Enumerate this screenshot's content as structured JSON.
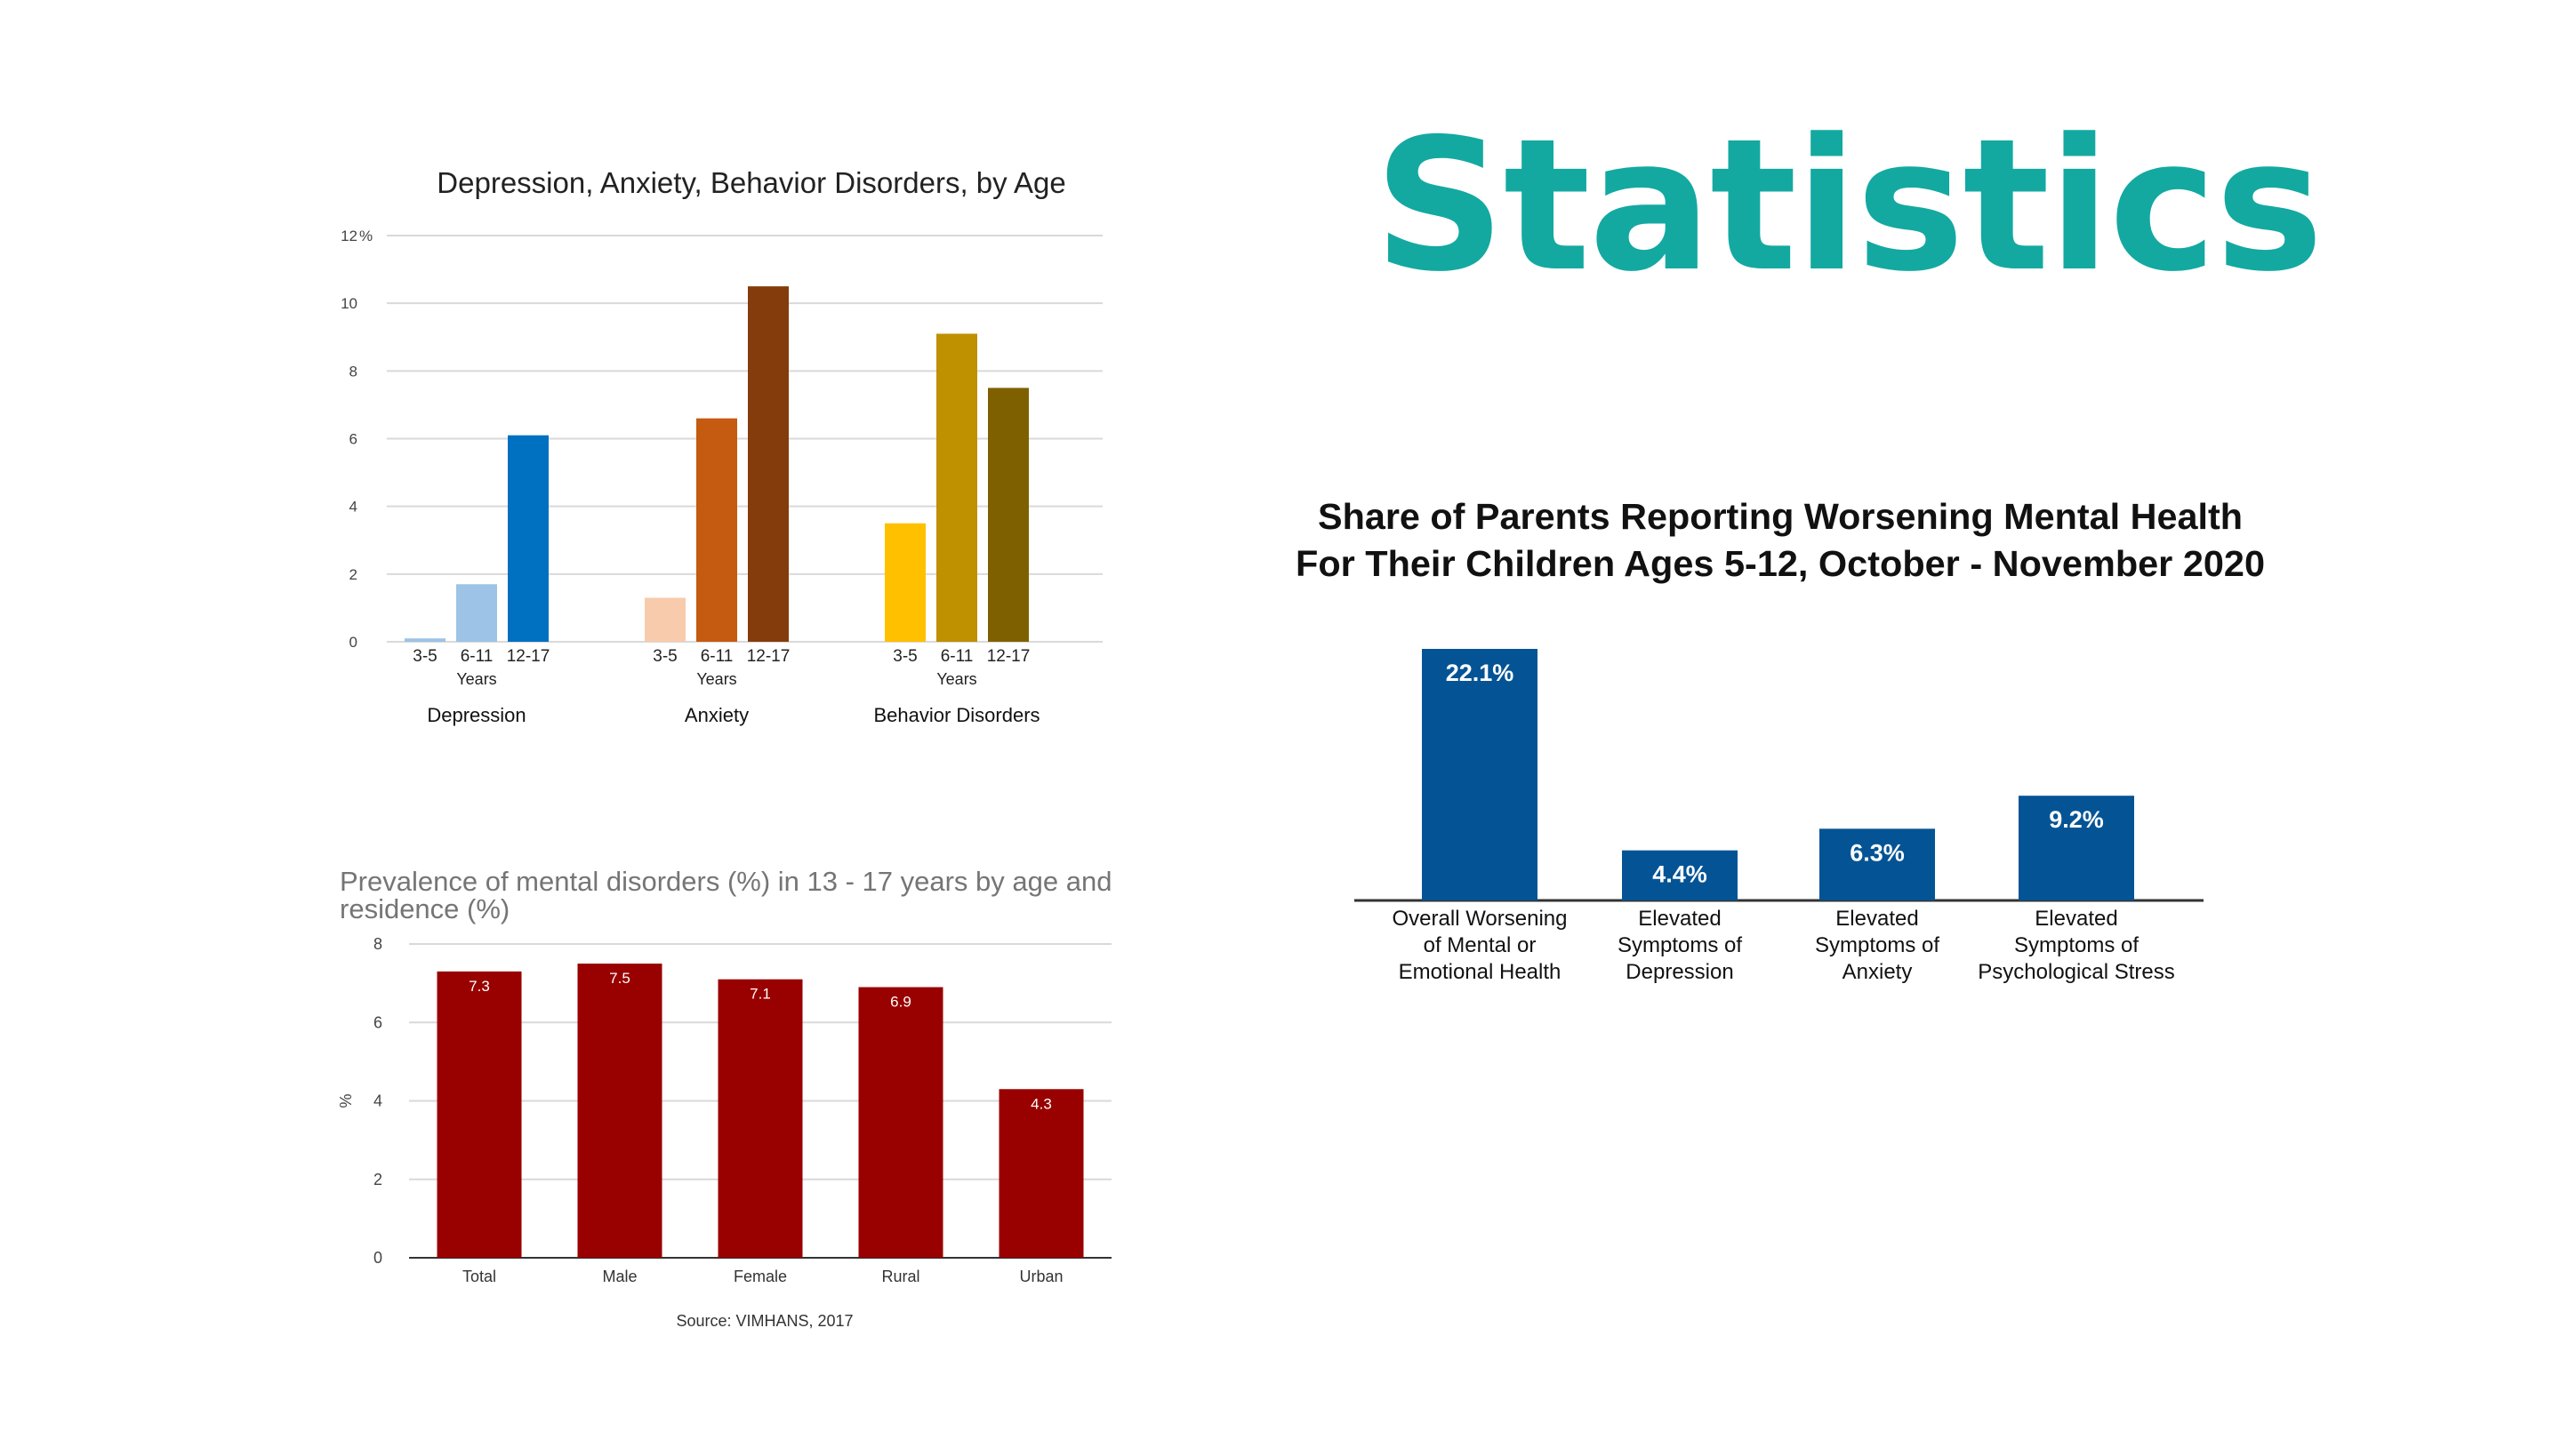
{
  "page": {
    "title": "Statistics"
  },
  "colors": {
    "title": "#13A9A1",
    "grid": "#d9d9d9",
    "chart2_bar": "#990000",
    "chart3_bar": "#045495"
  },
  "chart_data": [
    {
      "type": "bar",
      "title": "Depression, Anxiety, Behavior Disorders, by Age",
      "y_unit_label": "%",
      "ylim": [
        0,
        12
      ],
      "yticks": [
        "0",
        "2",
        "4",
        "6",
        "8",
        "10",
        "12"
      ],
      "grid": true,
      "groups": [
        {
          "name": "Depression",
          "bars": [
            {
              "label": "3-5",
              "value": 0.1,
              "color": "#9DC3E6"
            },
            {
              "label": "6-11",
              "value": 1.7,
              "color": "#9DC3E6"
            },
            {
              "label": "12-17",
              "value": 6.1,
              "color": "#0070C0"
            }
          ]
        },
        {
          "name": "Anxiety",
          "bars": [
            {
              "label": "3-5",
              "value": 1.3,
              "color": "#F8CBAD"
            },
            {
              "label": "6-11",
              "value": 6.6,
              "color": "#C55A11"
            },
            {
              "label": "12-17",
              "value": 10.5,
              "color": "#843C0C"
            }
          ]
        },
        {
          "name": "Behavior Disorders",
          "bars": [
            {
              "label": "3-5",
              "value": 3.5,
              "color": "#FFC000"
            },
            {
              "label": "6-11",
              "value": 9.1,
              "color": "#BF9000"
            },
            {
              "label": "12-17",
              "value": 7.5,
              "color": "#7F6000"
            }
          ]
        }
      ],
      "group_sublabel": "Years"
    },
    {
      "type": "bar",
      "title": "Prevalence of mental disorders (%) in 13 - 17 years by age and residence (%)",
      "ylabel": "%",
      "ylim": [
        0,
        8
      ],
      "yticks": [
        "0",
        "2",
        "4",
        "6",
        "8"
      ],
      "grid": true,
      "categories": [
        "Total",
        "Male",
        "Female",
        "Rural",
        "Urban"
      ],
      "values": [
        7.3,
        7.5,
        7.1,
        6.9,
        4.3
      ],
      "value_labels": [
        "7.3",
        "7.5",
        "7.1",
        "6.9",
        "4.3"
      ],
      "source": "Source: VIMHANS, 2017"
    },
    {
      "type": "bar",
      "title": "Share of Parents Reporting Worsening Mental Health",
      "subtitle": "For Their Children Ages 5-12, October - November 2020",
      "ylim": [
        0,
        22.1
      ],
      "grid": false,
      "categories": [
        "Overall Worsening of Mental or Emotional Health",
        "Elevated Symptoms of Depression",
        "Elevated Symptoms of Anxiety",
        "Elevated Symptoms of Psychological Stress"
      ],
      "category_lines": [
        [
          "Overall Worsening",
          "of Mental or",
          "Emotional Health"
        ],
        [
          "Elevated",
          "Symptoms of",
          "Depression"
        ],
        [
          "Elevated",
          "Symptoms of",
          "Anxiety"
        ],
        [
          "Elevated",
          "Symptoms of",
          "Psychological Stress"
        ]
      ],
      "values": [
        22.1,
        4.4,
        6.3,
        9.2
      ],
      "value_labels": [
        "22.1%",
        "4.4%",
        "6.3%",
        "9.2%"
      ]
    }
  ]
}
